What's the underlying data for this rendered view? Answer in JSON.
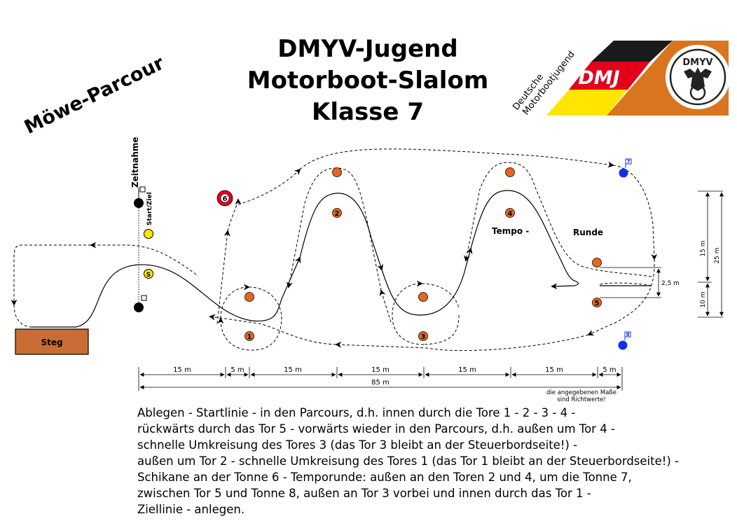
{
  "title": {
    "line1": "DMYV-Jugend",
    "line2": "Motorboot-Slalom",
    "line3": "Klasse 7"
  },
  "course_name": "Möwe-Parcour",
  "logo": {
    "left_text_line1": "Deutsche",
    "left_text_line2": "Motorbootjugend",
    "badge": "DMJ",
    "circle_text": "DMYV",
    "colors": {
      "black": "#1a1a1a",
      "red": "#e3001b",
      "yellow": "#ffe500",
      "orange": "#d8751e"
    }
  },
  "labels": {
    "timing": "Zeitnahme",
    "start_finish": "Start/Ziel",
    "start_buoy": "S",
    "dock": "Steg",
    "tempo_left": "Tempo -",
    "tempo_right": "Runde"
  },
  "gates": {
    "g1": "1",
    "g2": "2",
    "g3": "3",
    "g4": "4",
    "g5": "5",
    "tonne6": "6",
    "tonne7": "7",
    "tonne8": "8"
  },
  "dimensions": {
    "seg1": "15 m",
    "seg2": "5 m",
    "seg3": "15 m",
    "seg4": "15 m",
    "seg5": "15 m",
    "seg6": "15 m",
    "seg7": "5 m",
    "total": "85 m",
    "right_15": "15 m",
    "right_25": "25 m",
    "right_10": "10 m",
    "right_25_small": "2,5 m"
  },
  "note": {
    "line1": "die angegebenen Maße",
    "line2": "sind Richtwerte!"
  },
  "description": [
    "Ablegen - Startlinie - in den Parcours, d.h. innen durch die Tore 1 - 2 - 3 - 4 -",
    "rückwärts durch das Tor 5 - vorwärts wieder in den Parcours, d.h. außen um Tor 4 -",
    "schnelle Umkreisung des Tores 3 (das Tor 3 bleibt an der Steuerbordseite!) -",
    "außen um Tor 2 - schnelle Umkreisung des Tores 1 (das Tor 1 bleibt an der Steuerbordseite!) -",
    "Schikane an der Tonne 6 - Temporunde: außen an den Toren 2 und 4, um die Tonne 7,",
    "zwischen Tor 5 und Tonne 8, außen an Tor 3 vorbei und innen durch das Tor 1 -",
    "Ziellinie - anlegen."
  ]
}
